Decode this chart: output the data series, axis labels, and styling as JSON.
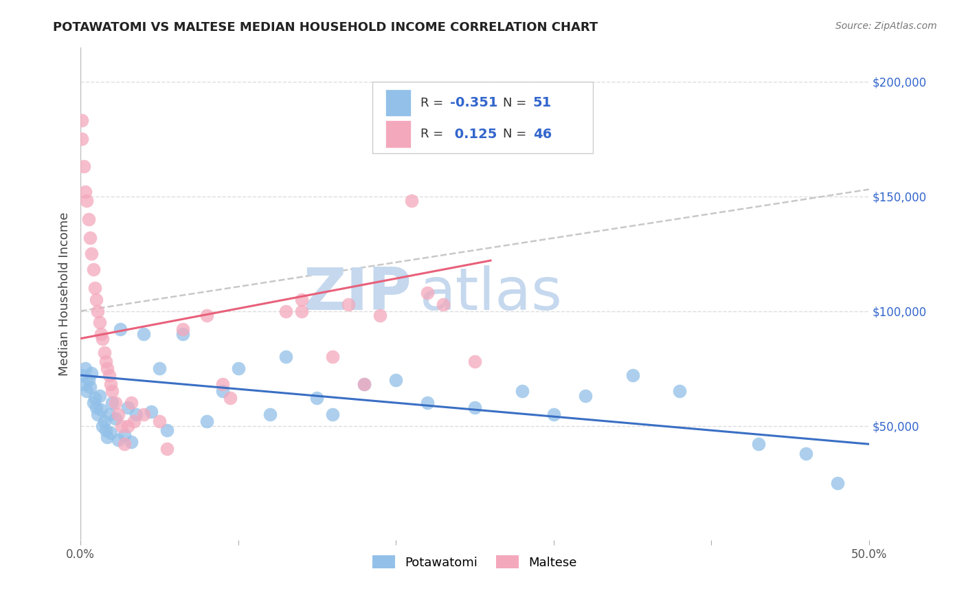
{
  "title": "POTAWATOMI VS MALTESE MEDIAN HOUSEHOLD INCOME CORRELATION CHART",
  "source": "Source: ZipAtlas.com",
  "ylabel": "Median Household Income",
  "xlim": [
    0.0,
    0.5
  ],
  "ylim": [
    0,
    215000
  ],
  "yticks_right": [
    50000,
    100000,
    150000,
    200000
  ],
  "ytick_labels_right": [
    "$50,000",
    "$100,000",
    "$150,000",
    "$200,000"
  ],
  "potawatomi_color": "#92C0E8",
  "maltese_color": "#F4A8BC",
  "potawatomi_line_color": "#3A6FC4",
  "maltese_line_color": "#E8607A",
  "dashed_line_color": "#C8C8C8",
  "R_potawatomi": -0.351,
  "N_potawatomi": 51,
  "R_maltese": 0.125,
  "N_maltese": 46,
  "potawatomi_x": [
    0.001,
    0.002,
    0.003,
    0.004,
    0.005,
    0.006,
    0.007,
    0.008,
    0.009,
    0.01,
    0.011,
    0.012,
    0.013,
    0.014,
    0.015,
    0.016,
    0.017,
    0.018,
    0.019,
    0.02,
    0.022,
    0.024,
    0.025,
    0.028,
    0.03,
    0.032,
    0.035,
    0.04,
    0.045,
    0.05,
    0.055,
    0.065,
    0.08,
    0.09,
    0.1,
    0.12,
    0.13,
    0.15,
    0.16,
    0.18,
    0.2,
    0.22,
    0.25,
    0.28,
    0.3,
    0.32,
    0.35,
    0.38,
    0.43,
    0.46,
    0.48
  ],
  "potawatomi_y": [
    72000,
    68000,
    75000,
    65000,
    70000,
    67000,
    73000,
    60000,
    62000,
    58000,
    55000,
    63000,
    57000,
    50000,
    52000,
    48000,
    45000,
    55000,
    47000,
    60000,
    53000,
    44000,
    92000,
    46000,
    58000,
    43000,
    55000,
    90000,
    56000,
    75000,
    48000,
    90000,
    52000,
    65000,
    75000,
    55000,
    80000,
    62000,
    55000,
    68000,
    70000,
    60000,
    58000,
    65000,
    55000,
    63000,
    72000,
    65000,
    42000,
    38000,
    25000
  ],
  "maltese_x": [
    0.001,
    0.001,
    0.002,
    0.003,
    0.004,
    0.005,
    0.006,
    0.007,
    0.008,
    0.009,
    0.01,
    0.011,
    0.012,
    0.013,
    0.014,
    0.015,
    0.016,
    0.017,
    0.018,
    0.019,
    0.02,
    0.022,
    0.024,
    0.026,
    0.028,
    0.03,
    0.032,
    0.034,
    0.04,
    0.05,
    0.055,
    0.065,
    0.08,
    0.09,
    0.095,
    0.13,
    0.14,
    0.16,
    0.18,
    0.19,
    0.21,
    0.22,
    0.23,
    0.25,
    0.14,
    0.17
  ],
  "maltese_y": [
    183000,
    175000,
    163000,
    152000,
    148000,
    140000,
    132000,
    125000,
    118000,
    110000,
    105000,
    100000,
    95000,
    90000,
    88000,
    82000,
    78000,
    75000,
    72000,
    68000,
    65000,
    60000,
    55000,
    50000,
    42000,
    50000,
    60000,
    52000,
    55000,
    52000,
    40000,
    92000,
    98000,
    68000,
    62000,
    100000,
    105000,
    80000,
    68000,
    98000,
    148000,
    108000,
    103000,
    78000,
    100000,
    103000
  ],
  "background_color": "#FFFFFF",
  "grid_color": "#DDDDDD",
  "watermark_zip": "ZIP",
  "watermark_atlas": "atlas",
  "watermark_color": "#C5D8EE",
  "legend_R_color": "#333333",
  "legend_N_color": "#3366CC",
  "pot_trend_x0": 0.0,
  "pot_trend_y0": 72000,
  "pot_trend_x1": 0.5,
  "pot_trend_y1": 42000,
  "mal_trend_x0": 0.0,
  "mal_trend_y0": 88000,
  "mal_trend_x1": 0.26,
  "mal_trend_y1": 122000,
  "dash_trend_x0": 0.0,
  "dash_trend_y0": 100000,
  "dash_trend_x1": 0.5,
  "dash_trend_y1": 153000
}
